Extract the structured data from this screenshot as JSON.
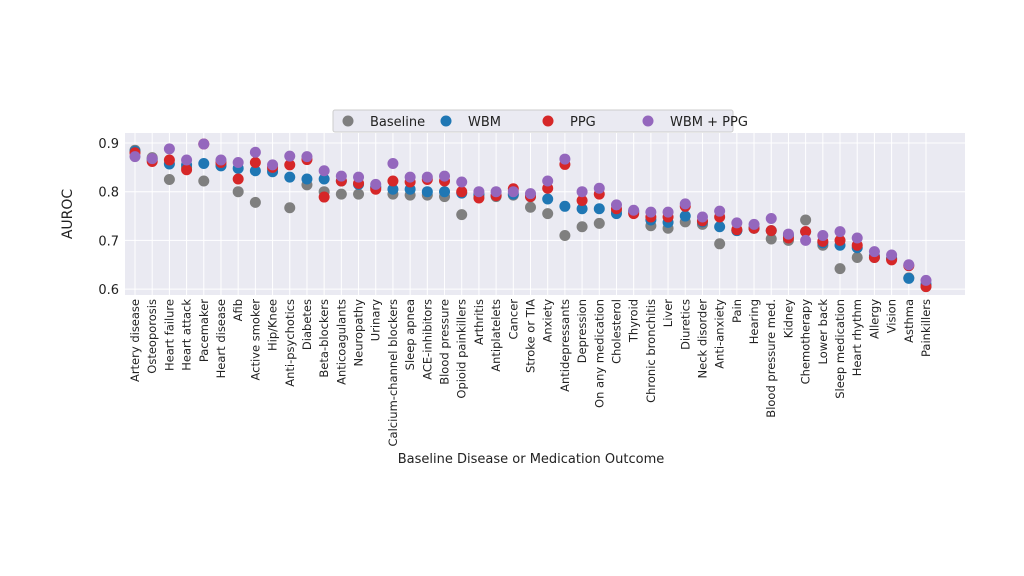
{
  "chart_data": {
    "type": "scatter",
    "title": "",
    "xlabel": "Baseline Disease or Medication Outcome",
    "ylabel": "AUROC",
    "ylim": [
      0.59,
      0.91
    ],
    "yticks": [
      0.6,
      0.7,
      0.8,
      0.9
    ],
    "ytick_labels": [
      "0.6",
      "0.7",
      "0.8",
      "0.9"
    ],
    "grid": true,
    "legend_position": "top-center",
    "categories": [
      "Artery disease",
      "Osteoporosis",
      "Heart failure",
      "Heart attack",
      "Pacemaker",
      "Heart disease",
      "Afib",
      "Active smoker",
      "Hip/Knee",
      "Anti-psychotics",
      "Diabetes",
      "Beta-blockers",
      "Anticoagulants",
      "Neuropathy",
      "Urinary",
      "Calcium-channel blockers",
      "Sleep apnea",
      "ACE-inhibitors",
      "Blood pressure",
      "Opioid painkillers",
      "Arthritis",
      "Antiplatelets",
      "Cancer",
      "Stroke or TIA",
      "Anxiety",
      "Antidepressants",
      "Depression",
      "On any medication",
      "Cholesterol",
      "Thyroid",
      "Chronic bronchitis",
      "Liver",
      "Diuretics",
      "Neck disorder",
      "Anti-anxiety",
      "Pain",
      "Hearing",
      "Blood pressure med.",
      "Kidney",
      "Chemotherapy",
      "Lower back",
      "Sleep medication",
      "Heart rhythm",
      "Allergy",
      "Vision",
      "Asthma",
      "Painkillers"
    ],
    "series": [
      {
        "name": "Baseline",
        "color": "#7f7f7f",
        "values": [
          0.885,
          0.87,
          0.825,
          0.85,
          0.822,
          0.855,
          0.8,
          0.778,
          0.845,
          0.767,
          0.814,
          0.8,
          0.795,
          0.795,
          0.808,
          0.795,
          0.793,
          0.793,
          0.79,
          0.753,
          0.792,
          0.79,
          0.793,
          0.768,
          0.755,
          0.71,
          0.728,
          0.735,
          0.76,
          0.758,
          0.73,
          0.725,
          0.738,
          0.733,
          0.693,
          0.72,
          0.725,
          0.703,
          0.7,
          0.742,
          0.69,
          0.642,
          0.665,
          0.665,
          0.662,
          0.623,
          0.605
        ]
      },
      {
        "name": "WBM",
        "color": "#1f77b4",
        "values": [
          0.883,
          0.866,
          0.857,
          0.855,
          0.858,
          0.853,
          0.848,
          0.843,
          0.841,
          0.83,
          0.826,
          0.826,
          0.822,
          0.815,
          0.81,
          0.805,
          0.805,
          0.8,
          0.8,
          0.797,
          0.795,
          0.792,
          0.795,
          0.79,
          0.785,
          0.77,
          0.765,
          0.765,
          0.755,
          0.76,
          0.742,
          0.737,
          0.75,
          0.738,
          0.728,
          0.72,
          0.725,
          0.72,
          0.71,
          0.718,
          0.695,
          0.69,
          0.685,
          0.668,
          0.663,
          0.622,
          0.61
        ]
      },
      {
        "name": "PPG",
        "color": "#d62728",
        "values": [
          0.88,
          0.862,
          0.865,
          0.845,
          0.898,
          0.86,
          0.826,
          0.86,
          0.85,
          0.855,
          0.866,
          0.789,
          0.822,
          0.817,
          0.805,
          0.822,
          0.82,
          0.825,
          0.822,
          0.8,
          0.787,
          0.792,
          0.806,
          0.79,
          0.807,
          0.856,
          0.782,
          0.795,
          0.765,
          0.755,
          0.748,
          0.748,
          0.77,
          0.74,
          0.748,
          0.722,
          0.725,
          0.72,
          0.705,
          0.718,
          0.698,
          0.7,
          0.69,
          0.665,
          0.66,
          0.648,
          0.605
        ]
      },
      {
        "name": "WBM + PPG",
        "color": "#9467bd",
        "values": [
          0.872,
          0.868,
          0.888,
          0.865,
          0.898,
          0.865,
          0.86,
          0.881,
          0.855,
          0.873,
          0.872,
          0.843,
          0.832,
          0.83,
          0.815,
          0.858,
          0.83,
          0.83,
          0.832,
          0.82,
          0.8,
          0.8,
          0.8,
          0.796,
          0.822,
          0.867,
          0.8,
          0.807,
          0.773,
          0.762,
          0.758,
          0.758,
          0.775,
          0.748,
          0.76,
          0.736,
          0.733,
          0.745,
          0.713,
          0.7,
          0.71,
          0.718,
          0.705,
          0.677,
          0.67,
          0.65,
          0.618
        ]
      }
    ]
  }
}
